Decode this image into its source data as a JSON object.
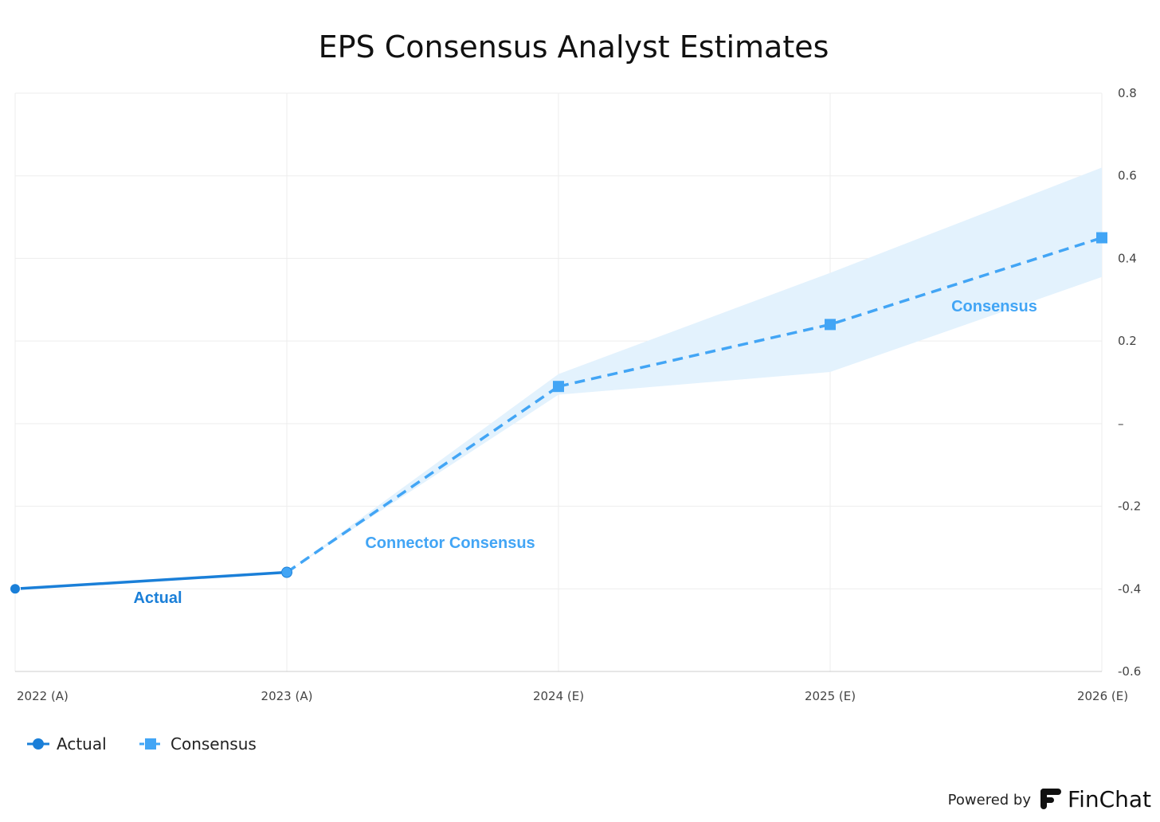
{
  "chart_data": {
    "type": "line",
    "title": "EPS Consensus Analyst Estimates",
    "categories": [
      "2022 (A)",
      "2023 (A)",
      "2024 (E)",
      "2025 (E)",
      "2026 (E)"
    ],
    "ylim": [
      -0.6,
      0.8
    ],
    "y_ticks": [
      0.8,
      0.6,
      0.4,
      0.2,
      0,
      -0.2,
      -0.4,
      -0.6
    ],
    "y_tick_labels": [
      "0.8",
      "0.6",
      "0.4",
      "0.2",
      "–",
      "-0.2",
      "-0.4",
      "-0.6"
    ],
    "y_axis_side": "right",
    "grid": true,
    "series": [
      {
        "name": "Actual",
        "color": "#1a7fd8",
        "style": "solid",
        "marker": "circle",
        "values": [
          -0.4,
          -0.36,
          null,
          null,
          null
        ]
      },
      {
        "name": "Consensus",
        "color": "#42a5f5",
        "style": "dashed",
        "marker": "square",
        "values": [
          null,
          null,
          0.09,
          0.24,
          0.45
        ],
        "range_low": [
          null,
          null,
          0.07,
          0.125,
          0.355
        ],
        "range_high": [
          null,
          null,
          0.12,
          0.365,
          0.62
        ]
      },
      {
        "name": "Connector Consensus",
        "color": "#42a5f5",
        "style": "dashed",
        "values": [
          null,
          -0.36,
          0.09,
          null,
          null
        ]
      }
    ],
    "annotations": [
      {
        "text": "Actual",
        "color": "#1a7fd8"
      },
      {
        "text": "Connector Consensus",
        "color": "#42a5f5"
      },
      {
        "text": "Consensus",
        "color": "#42a5f5"
      }
    ],
    "band_color": "#e3f2fd",
    "legend_placement": "bottom-left",
    "legend": [
      {
        "label": "Actual",
        "color": "#1a7fd8",
        "marker": "circle"
      },
      {
        "label": "Consensus",
        "color": "#42a5f5",
        "marker": "square"
      }
    ]
  },
  "footer": {
    "powered_by": "Powered by",
    "brand": "FinChat",
    "brand_icon": "finchat-logo-icon"
  }
}
